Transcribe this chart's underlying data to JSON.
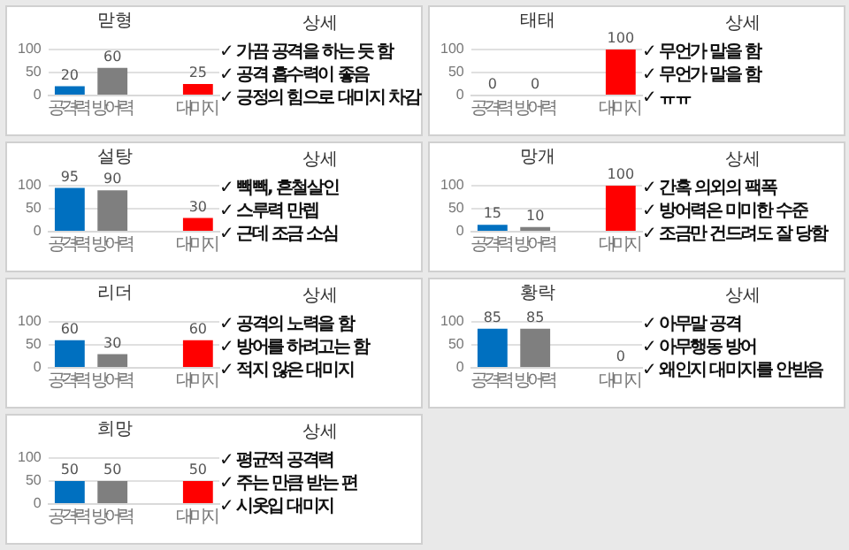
{
  "chart_data": [
    {
      "type": "bar",
      "title": "맏형",
      "categories": [
        "공격력",
        "방어력",
        null,
        "대미지"
      ],
      "values": [
        20,
        60,
        null,
        25
      ],
      "colors": [
        "#0070c0",
        "#7f7f7f",
        "#7f7f7f",
        "#ff0000"
      ],
      "ylim": [
        0,
        100
      ],
      "yticks": [
        0,
        50,
        100
      ],
      "grid": "y",
      "data_labels": true,
      "legend": false
    },
    {
      "type": "other",
      "title": "상세",
      "annotations": [
        "✓ 가끔 공격을 하는 듯 함",
        "✓ 공격 흡수력이 좋음",
        "✓ 긍정의 힘으로 대미지 차감"
      ]
    },
    {
      "type": "bar",
      "title": "태태",
      "categories": [
        "공격력",
        "방어력",
        null,
        "대미지"
      ],
      "values": [
        0,
        0,
        null,
        100
      ],
      "colors": [
        "#0070c0",
        "#7f7f7f",
        "#7f7f7f",
        "#ff0000"
      ],
      "ylim": [
        0,
        100
      ],
      "yticks": [
        0,
        50,
        100
      ],
      "grid": "y",
      "data_labels": true,
      "legend": false
    },
    {
      "type": "other",
      "title": "상세",
      "annotations": [
        "✓ 무언가 말을 함",
        "✓ 무언가 말을 함",
        "✓ ㅠㅠ"
      ]
    },
    {
      "type": "bar",
      "title": "설탕",
      "categories": [
        "공격력",
        "방어력",
        null,
        "대미지"
      ],
      "values": [
        95,
        90,
        null,
        30
      ],
      "colors": [
        "#0070c0",
        "#7f7f7f",
        "#7f7f7f",
        "#ff0000"
      ],
      "ylim": [
        0,
        100
      ],
      "yticks": [
        0,
        50,
        100
      ],
      "grid": "y",
      "data_labels": true,
      "legend": false
    },
    {
      "type": "other",
      "title": "상세",
      "annotations": [
        "✓ 빽빽, 흔철살인",
        "✓ 스루력 만렙",
        "✓ 근데 조금 소심"
      ]
    },
    {
      "type": "bar",
      "title": "망개",
      "categories": [
        "공격력",
        "방어력",
        null,
        "대미지"
      ],
      "values": [
        15,
        10,
        null,
        100
      ],
      "colors": [
        "#0070c0",
        "#7f7f7f",
        "#7f7f7f",
        "#ff0000"
      ],
      "ylim": [
        0,
        100
      ],
      "yticks": [
        0,
        50,
        100
      ],
      "grid": "y",
      "data_labels": true,
      "legend": false
    },
    {
      "type": "other",
      "title": "상세",
      "annotations": [
        "✓ 간혹 의외의 팩폭",
        "✓ 방어력은 미미한 수준",
        "✓ 조금만 건드려도 잘 당함"
      ]
    },
    {
      "type": "bar",
      "title": "리더",
      "categories": [
        "공격력",
        "방어력",
        null,
        "대미지"
      ],
      "values": [
        60,
        30,
        null,
        60
      ],
      "colors": [
        "#0070c0",
        "#7f7f7f",
        "#7f7f7f",
        "#ff0000"
      ],
      "ylim": [
        0,
        100
      ],
      "yticks": [
        0,
        50,
        100
      ],
      "grid": "y",
      "data_labels": true,
      "legend": false
    },
    {
      "type": "other",
      "title": "상세",
      "annotations": [
        "✓ 공격의 노력을 함",
        "✓ 방어를 하려고는 함",
        "✓ 적지 않은 대미지"
      ]
    },
    {
      "type": "bar",
      "title": "황락",
      "categories": [
        "공격력",
        "방어력",
        null,
        "대미지"
      ],
      "values": [
        85,
        85,
        null,
        0
      ],
      "colors": [
        "#0070c0",
        "#7f7f7f",
        "#7f7f7f",
        "#ff0000"
      ],
      "ylim": [
        0,
        100
      ],
      "yticks": [
        0,
        50,
        100
      ],
      "grid": "y",
      "data_labels": true,
      "legend": false
    },
    {
      "type": "other",
      "title": "상세",
      "annotations": [
        "✓ 아무말 공격",
        "✓ 아무행동 방어",
        "✓ 왜인지 대미지를 안받음"
      ]
    },
    {
      "type": "bar",
      "title": "희망",
      "categories": [
        "공격력",
        "방어력",
        null,
        "대미지"
      ],
      "values": [
        50,
        50,
        null,
        50
      ],
      "colors": [
        "#0070c0",
        "#7f7f7f",
        "#7f7f7f",
        "#ff0000"
      ],
      "ylim": [
        0,
        100
      ],
      "yticks": [
        0,
        50,
        100
      ],
      "grid": "y",
      "data_labels": true,
      "legend": false
    },
    {
      "type": "other",
      "title": "상세",
      "annotations": [
        "✓ 평균적 공격력",
        "✓ 주는 만큼 받는 편",
        "✓ 시옷입 대미지"
      ]
    }
  ]
}
